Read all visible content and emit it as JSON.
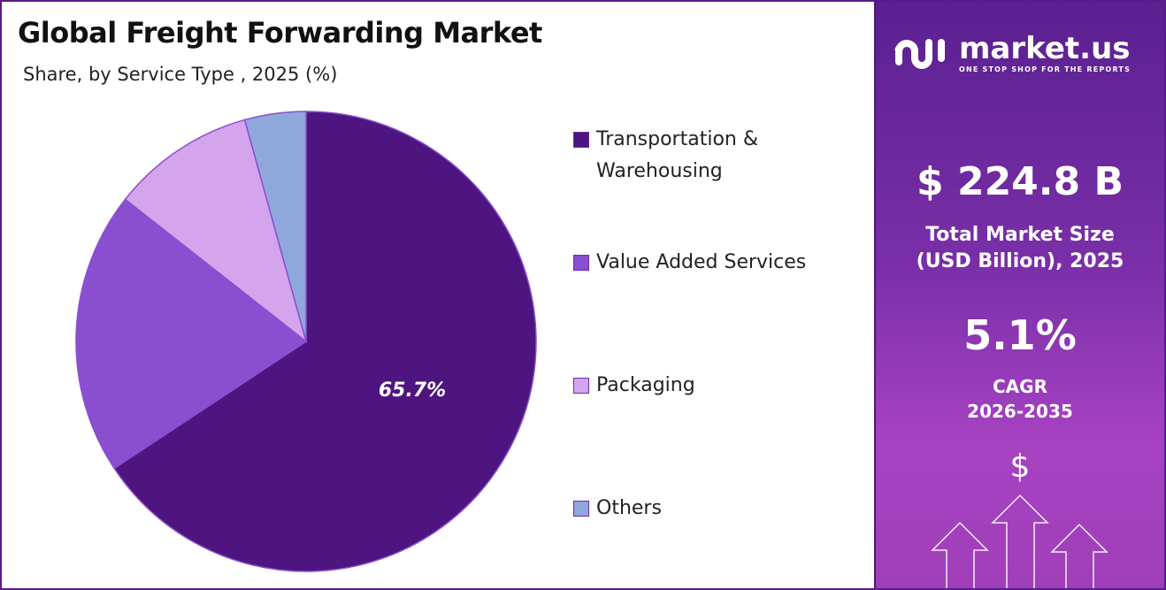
{
  "chart_data": {
    "type": "pie",
    "title": "Global Freight Forwarding Market",
    "subtitle": "Share, by Service Type , 2025 (%)",
    "categories": [
      "Transportation & Warehousing",
      "Value Added Services",
      "Packaging",
      "Others"
    ],
    "values": [
      65.7,
      19.9,
      10.1,
      4.3
    ],
    "data_labels": [
      "65.7%",
      "",
      "",
      ""
    ],
    "colors": [
      "#4e1580",
      "#8a4fd0",
      "#d4a5ec",
      "#8fa8dc"
    ],
    "legend_placement": "right"
  },
  "legend": {
    "items": [
      {
        "line1": "Transportation &",
        "line2": "Warehousing"
      },
      {
        "line1": "Value Added Services"
      },
      {
        "line1": "Packaging"
      },
      {
        "line1": "Others"
      }
    ]
  },
  "panel": {
    "logo_word": "market.us",
    "logo_tagline": "ONE STOP SHOP FOR THE REPORTS",
    "market_size": "$ 224.8 B",
    "market_size_label_1": "Total Market Size",
    "market_size_label_2": "(USD Billion), 2025",
    "cagr": "5.1%",
    "cagr_label_1": "CAGR",
    "cagr_label_2": "2026-2035",
    "dollar_symbol": "$"
  }
}
